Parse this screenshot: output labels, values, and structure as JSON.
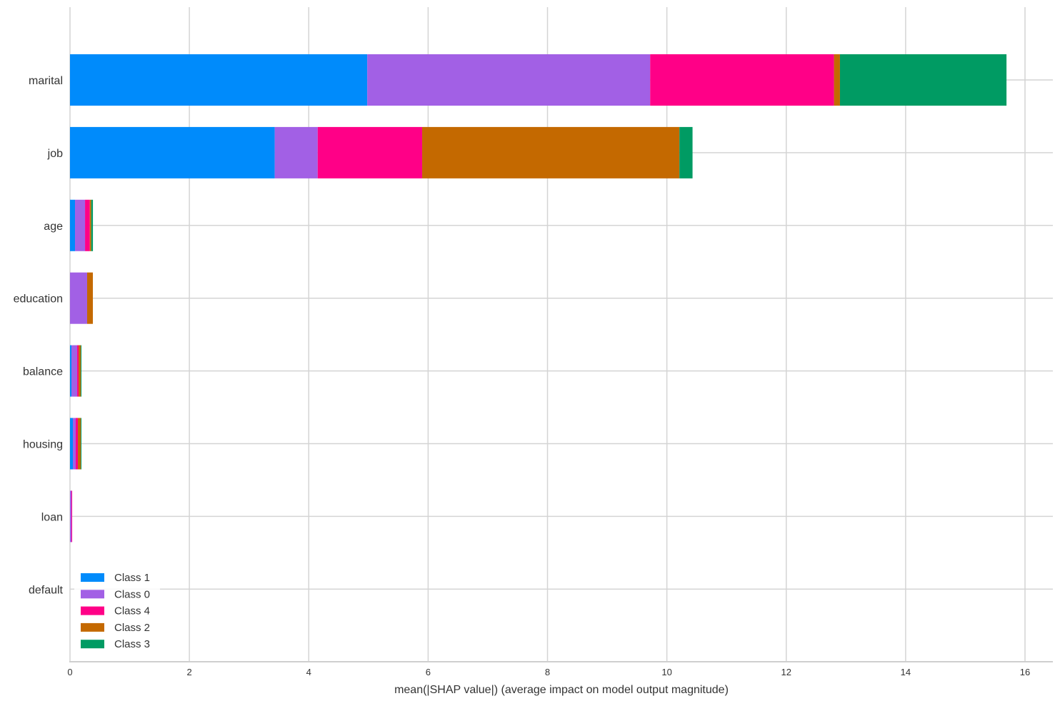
{
  "chart_data": {
    "type": "bar",
    "orientation": "horizontal",
    "stacked": true,
    "title": "",
    "xlabel": "mean(|SHAP value|) (average impact on model output magnitude)",
    "ylabel": "",
    "xlim": [
      0,
      16.45
    ],
    "xticks": [
      0,
      2,
      4,
      6,
      8,
      10,
      12,
      14,
      16
    ],
    "grid": true,
    "legend_position": "bottom-left",
    "categories": [
      "marital",
      "job",
      "age",
      "education",
      "balance",
      "housing",
      "loan",
      "default"
    ],
    "series": [
      {
        "name": "Class 1",
        "color": "#008bfb",
        "values": [
          4.98,
          3.43,
          0.084,
          0.0,
          0.024,
          0.048,
          0.0,
          0.0
        ]
      },
      {
        "name": "Class 0",
        "color": "#a260e5",
        "values": [
          4.74,
          0.72,
          0.168,
          0.287,
          0.096,
          0.048,
          0.024,
          0.0
        ]
      },
      {
        "name": "Class 4",
        "color": "#ff0087",
        "values": [
          3.08,
          1.75,
          0.08,
          0.0,
          0.024,
          0.036,
          0.012,
          0.0
        ]
      },
      {
        "name": "Class 2",
        "color": "#c46900",
        "values": [
          0.1,
          4.31,
          0.024,
          0.096,
          0.036,
          0.048,
          0.0,
          0.0
        ]
      },
      {
        "name": "Class 3",
        "color": "#009b63",
        "values": [
          2.79,
          0.22,
          0.028,
          0.0,
          0.012,
          0.012,
          0.0,
          0.0
        ]
      }
    ]
  }
}
